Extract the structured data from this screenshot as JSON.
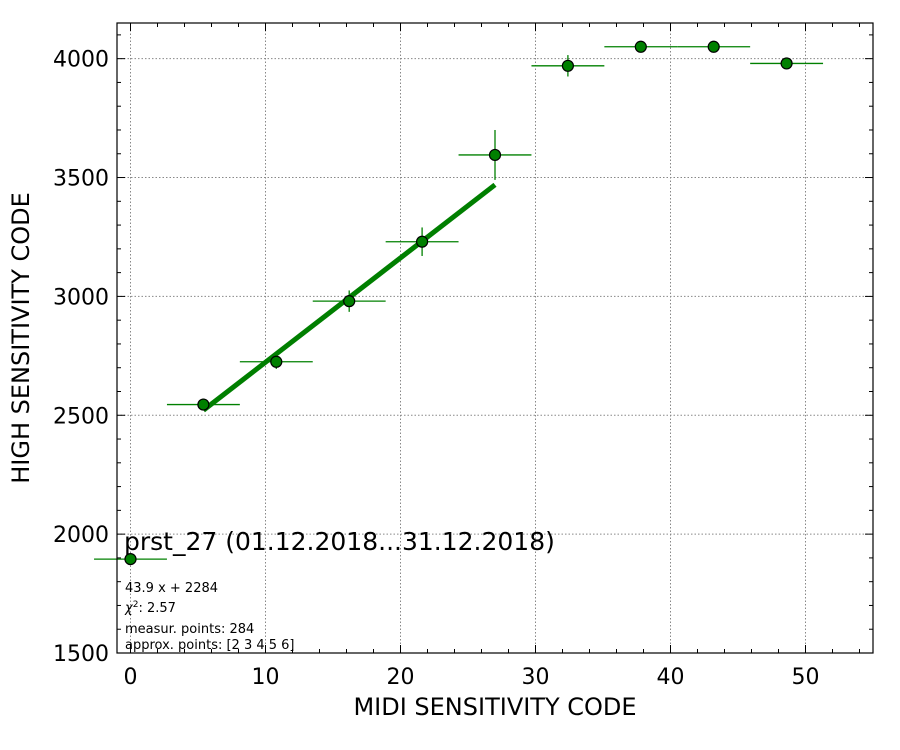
{
  "chart_data": {
    "type": "scatter",
    "title": "prst_27 (01.12.2018...31.12.2018)",
    "xlabel": "MIDI SENSITIVITY CODE",
    "ylabel": "HIGH SENSITIVITY CODE",
    "xlim": [
      -1,
      55
    ],
    "ylim": [
      1500,
      4150
    ],
    "xticks": [
      "0",
      "10",
      "20",
      "30",
      "40",
      "50"
    ],
    "xtick_values": [
      0,
      10,
      20,
      30,
      40,
      50
    ],
    "yticks": [
      "1500",
      "2000",
      "2500",
      "3000",
      "3500",
      "4000"
    ],
    "ytick_values": [
      1500,
      2000,
      2500,
      3000,
      3500,
      4000
    ],
    "grid": true,
    "marker_color": "#008000",
    "points": [
      {
        "x": 0.0,
        "y": 1895,
        "xerr": 2.7,
        "yerr": 10
      },
      {
        "x": 5.4,
        "y": 2545,
        "xerr": 2.7,
        "yerr": 25
      },
      {
        "x": 10.8,
        "y": 2725,
        "xerr": 2.7,
        "yerr": 30
      },
      {
        "x": 16.2,
        "y": 2980,
        "xerr": 2.7,
        "yerr": 45
      },
      {
        "x": 21.6,
        "y": 3230,
        "xerr": 2.7,
        "yerr": 60
      },
      {
        "x": 27.0,
        "y": 3595,
        "xerr": 2.7,
        "yerr": 105
      },
      {
        "x": 32.4,
        "y": 3970,
        "xerr": 2.7,
        "yerr": 45
      },
      {
        "x": 37.8,
        "y": 4050,
        "xerr": 2.7,
        "yerr": 5
      },
      {
        "x": 43.2,
        "y": 4050,
        "xerr": 2.7,
        "yerr": 5
      },
      {
        "x": 48.6,
        "y": 3980,
        "xerr": 2.7,
        "yerr": 5
      }
    ],
    "fit": {
      "slope": 43.9,
      "intercept": 2284,
      "x_range": [
        5.4,
        27.0
      ],
      "color": "#007f00"
    },
    "annotations": {
      "fit_label": "43.9 x + 2284",
      "chi2_label": "2.57",
      "measur_points": "measur. points: 284",
      "approx_points": "approx. points: [2 3 4 5 6]"
    }
  }
}
